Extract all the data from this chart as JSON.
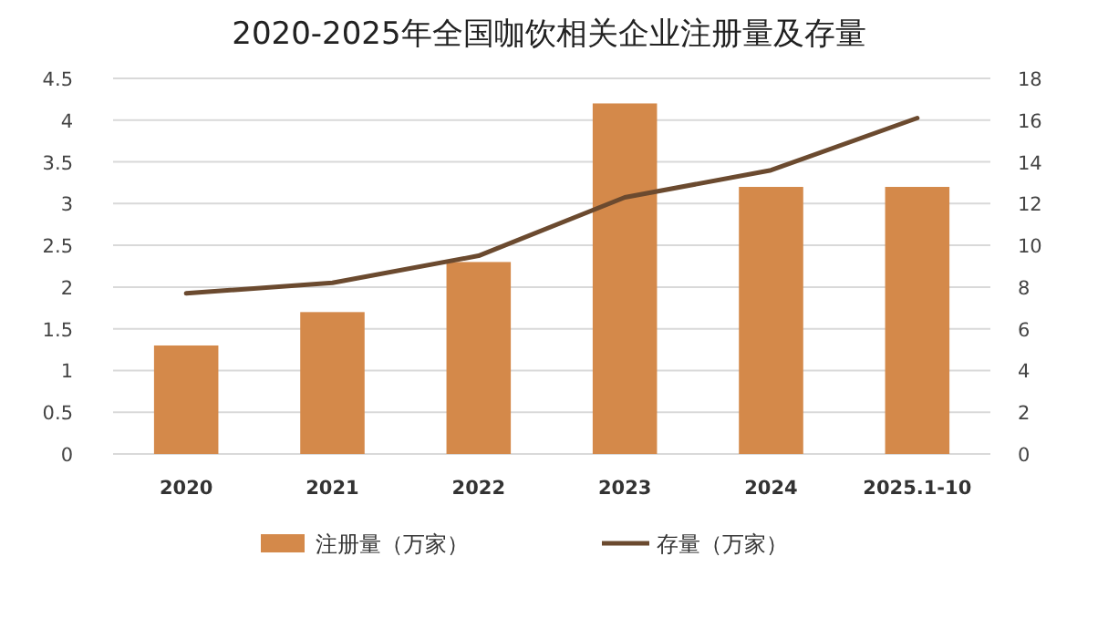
{
  "chart_data": {
    "type": "bar",
    "title": "2020-2025年全国咖饮相关企业注册量及存量",
    "categories": [
      "2020",
      "2021",
      "2022",
      "2023",
      "2024",
      "2025.1-10"
    ],
    "series": [
      {
        "name": "注册量（万家）",
        "color": "#d4894a",
        "values": [
          1.3,
          1.7,
          2.3,
          4.2,
          3.2,
          3.2
        ]
      },
      {
        "name": "存量（万家）",
        "type": "line",
        "axis": "y2",
        "color": "#6b4a2f",
        "values": [
          7.7,
          8.2,
          9.5,
          12.3,
          13.6,
          16.1
        ]
      }
    ],
    "ylim": [
      0,
      4.5
    ],
    "yticks": [
      0,
      0.5,
      1,
      1.5,
      2,
      2.5,
      3,
      3.5,
      4,
      4.5
    ],
    "y2lim": [
      0,
      18
    ],
    "y2ticks": [
      0,
      2,
      4,
      6,
      8,
      10,
      12,
      14,
      16,
      18
    ],
    "grid": "y",
    "legend": "bottom",
    "marker": "none"
  }
}
